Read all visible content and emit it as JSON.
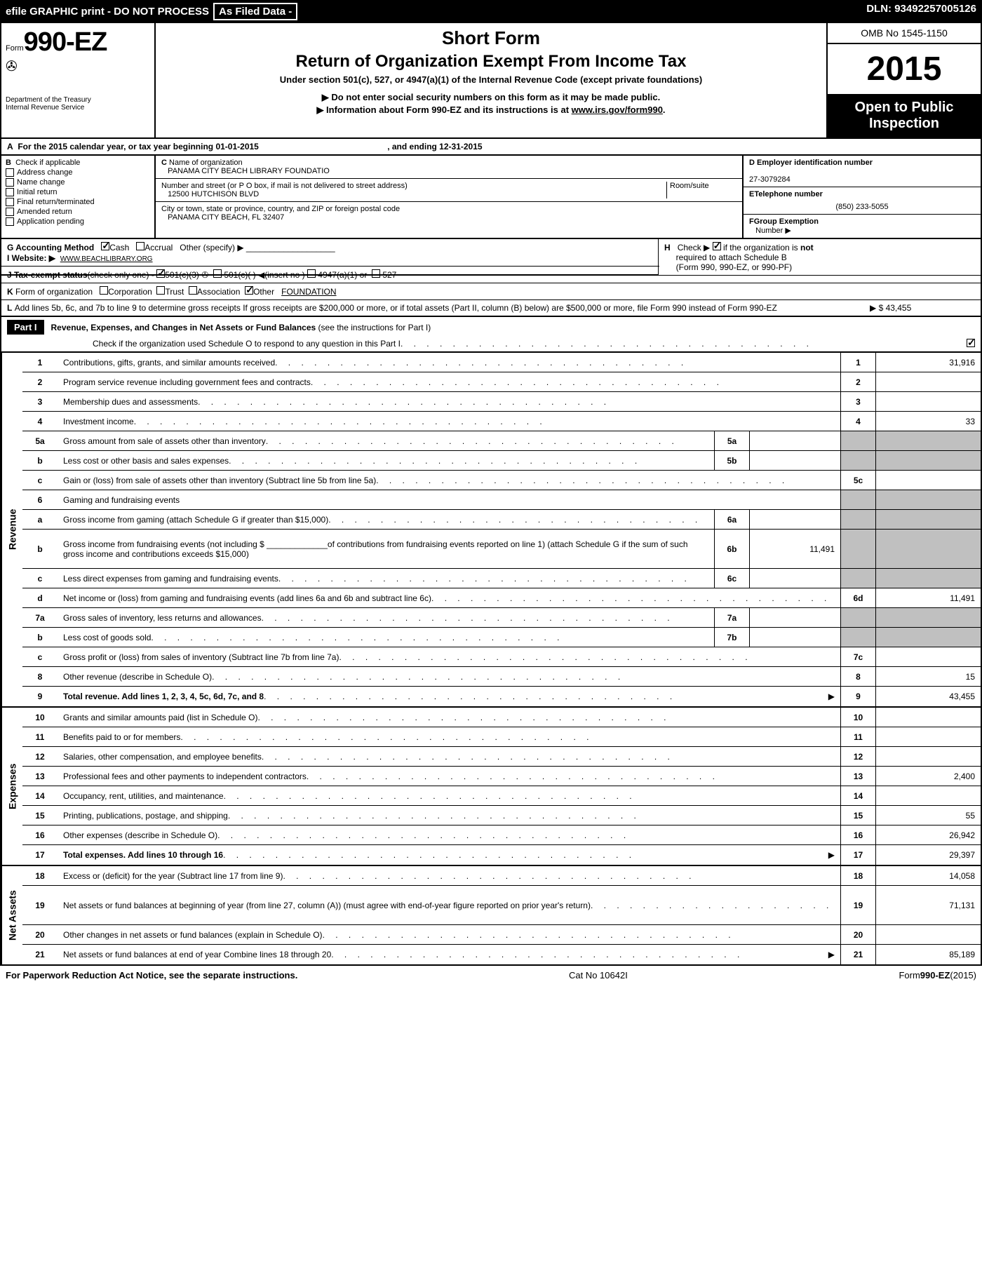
{
  "header": {
    "efile": "efile GRAPHIC print - DO NOT PROCESS",
    "asfiled": "As Filed Data -",
    "dln": "DLN: 93492257005126"
  },
  "title": {
    "formPrefix": "Form",
    "formNum": "990-EZ",
    "dept": "Department of the Treasury",
    "irs": "Internal Revenue Service",
    "shortForm": "Short Form",
    "mainTitle": "Return of Organization Exempt From Income Tax",
    "subtitle": "Under section 501(c), 527, or 4947(a)(1) of the Internal Revenue Code (except private foundations)",
    "info1": "▶ Do not enter social security numbers on this form as it may be made public.",
    "info2": "▶ Information about Form 990-EZ and its instructions is at ",
    "info2link": "www.irs.gov/form990",
    "omb": "OMB No 1545-1150",
    "year": "2015",
    "openPublic1": "Open to Public",
    "openPublic2": "Inspection"
  },
  "sectionA": {
    "label": "A",
    "text1": "For the 2015 calendar year, or tax year beginning 01-01-2015",
    "text2": ", and ending 12-31-2015"
  },
  "sectionB": {
    "label": "B",
    "intro": "Check if applicable",
    "opts": [
      "Address change",
      "Name change",
      "Initial return",
      "Final return/terminated",
      "Amended return",
      "Application pending"
    ]
  },
  "sectionC": {
    "label": "C",
    "nameLabel": "Name of organization",
    "name": "PANAMA CITY BEACH LIBRARY FOUNDATIO",
    "addrLabel": "Number and street (or P O box, if mail is not delivered to street address)",
    "roomLabel": "Room/suite",
    "addr": "12500 HUTCHISON BLVD",
    "cityLabel": "City or town, state or province, country, and ZIP or foreign postal code",
    "city": "PANAMA CITY BEACH, FL  32407"
  },
  "sectionD": {
    "einLabel": "D Employer identification number",
    "ein": "27-3079284",
    "phoneLabel": "ETelephone number",
    "phone": "(850) 233-5055",
    "groupLabel": "FGroup Exemption",
    "groupLabel2": "Number    ▶"
  },
  "sectionG": {
    "label": "G Accounting Method",
    "cash": "Cash",
    "accrual": "Accrual",
    "other": "Other (specify) ▶"
  },
  "sectionH": {
    "label": "H",
    "text1": "Check ▶",
    "text2": "if the organization is ",
    "not": "not",
    "text3": "required to attach Schedule B",
    "text4": "(Form 990, 990-EZ, or 990-PF)"
  },
  "sectionI": {
    "label": "I Website: ▶",
    "url": "WWW.BEACHLIBRARY.ORG"
  },
  "sectionJ": {
    "label": "J Tax-exempt status",
    "text": "(check only one) -",
    "opt1": "501(c)(3)",
    "opt2": "501(c)( )",
    "opt2b": "◀(insert no )",
    "opt3": "4947(a)(1) or",
    "opt4": "527"
  },
  "sectionK": {
    "label": "K",
    "text": "Form of organization",
    "opts": [
      "Corporation",
      "Trust",
      "Association",
      "Other"
    ],
    "value": "FOUNDATION"
  },
  "sectionL": {
    "label": "L",
    "text": "Add lines 5b, 6c, and 7b to line 9 to determine gross receipts  If gross receipts are $200,000 or more, or if total assets (Part II, column (B) below) are $500,000 or more, file Form 990 instead of Form 990-EZ",
    "value": "▶ $ 43,455"
  },
  "part1": {
    "label": "Part I",
    "title": "Revenue, Expenses, and Changes in Net Assets or Fund Balances",
    "titleSub": "(see the instructions for Part I)",
    "checkLine": "Check if the organization used Schedule O to respond to any question in this Part I"
  },
  "revenue": {
    "label": "Revenue",
    "lines": [
      {
        "n": "1",
        "d": "Contributions, gifts, grants, and similar amounts received",
        "rn": "1",
        "rv": "31,916"
      },
      {
        "n": "2",
        "d": "Program service revenue including government fees and contracts",
        "rn": "2",
        "rv": ""
      },
      {
        "n": "3",
        "d": "Membership dues and assessments",
        "rn": "3",
        "rv": ""
      },
      {
        "n": "4",
        "d": "Investment income",
        "rn": "4",
        "rv": "33"
      },
      {
        "n": "5a",
        "d": "Gross amount from sale of assets other than inventory",
        "sn": "5a",
        "sv": "",
        "shaded": true
      },
      {
        "n": "b",
        "d": "Less  cost or other basis and sales expenses",
        "sn": "5b",
        "sv": "",
        "shaded": true
      },
      {
        "n": "c",
        "d": "Gain or (loss) from sale of assets other than inventory (Subtract line 5b from line 5a)",
        "rn": "5c",
        "rv": ""
      },
      {
        "n": "6",
        "d": "Gaming and fundraising events",
        "shaded": true,
        "noval": true
      },
      {
        "n": "a",
        "d": "Gross income from gaming (attach Schedule G if greater than $15,000)",
        "sn": "6a",
        "sv": "",
        "shaded": true
      },
      {
        "n": "b",
        "d": "Gross income from fundraising events (not including $ _____________of contributions from fundraising events reported on line 1) (attach Schedule G if the sum of such gross income and contributions exceeds $15,000)",
        "sn": "6b",
        "sv": "11,491",
        "shaded": true,
        "tall": true
      },
      {
        "n": "c",
        "d": "Less  direct expenses from gaming and fundraising events",
        "sn": "6c",
        "sv": "",
        "shaded": true
      },
      {
        "n": "d",
        "d": "Net income or (loss) from gaming and fundraising events (add lines 6a and 6b and subtract line 6c)",
        "rn": "6d",
        "rv": "11,491"
      },
      {
        "n": "7a",
        "d": "Gross sales of inventory, less returns and allowances",
        "sn": "7a",
        "sv": "",
        "shaded": true
      },
      {
        "n": "b",
        "d": "Less  cost of goods sold",
        "sn": "7b",
        "sv": "",
        "shaded": true
      },
      {
        "n": "c",
        "d": "Gross profit or (loss) from sales of inventory (Subtract line 7b from line 7a)",
        "rn": "7c",
        "rv": ""
      },
      {
        "n": "8",
        "d": "Other revenue (describe in Schedule O)",
        "rn": "8",
        "rv": "15"
      },
      {
        "n": "9",
        "d": "Total revenue. Add lines 1, 2, 3, 4, 5c, 6d, 7c, and 8",
        "rn": "9",
        "rv": "43,455",
        "bold": true,
        "arrow": true
      }
    ]
  },
  "expenses": {
    "label": "Expenses",
    "lines": [
      {
        "n": "10",
        "d": "Grants and similar amounts paid (list in Schedule O)",
        "rn": "10",
        "rv": ""
      },
      {
        "n": "11",
        "d": "Benefits paid to or for members",
        "rn": "11",
        "rv": ""
      },
      {
        "n": "12",
        "d": "Salaries, other compensation, and employee benefits",
        "rn": "12",
        "rv": ""
      },
      {
        "n": "13",
        "d": "Professional fees and other payments to independent contractors",
        "rn": "13",
        "rv": "2,400"
      },
      {
        "n": "14",
        "d": "Occupancy, rent, utilities, and maintenance",
        "rn": "14",
        "rv": ""
      },
      {
        "n": "15",
        "d": "Printing, publications, postage, and shipping",
        "rn": "15",
        "rv": "55"
      },
      {
        "n": "16",
        "d": "Other expenses (describe in Schedule O)",
        "rn": "16",
        "rv": "26,942"
      },
      {
        "n": "17",
        "d": "Total expenses. Add lines 10 through 16",
        "rn": "17",
        "rv": "29,397",
        "bold": true,
        "arrow": true
      }
    ]
  },
  "netassets": {
    "label": "Net Assets",
    "lines": [
      {
        "n": "18",
        "d": "Excess or (deficit) for the year (Subtract line 17 from line 9)",
        "rn": "18",
        "rv": "14,058"
      },
      {
        "n": "19",
        "d": "Net assets or fund balances at beginning of year (from line 27, column (A)) (must agree with end-of-year figure reported on prior year's return)",
        "rn": "19",
        "rv": "71,131",
        "tall": true
      },
      {
        "n": "20",
        "d": "Other changes in net assets or fund balances (explain in Schedule O)",
        "rn": "20",
        "rv": ""
      },
      {
        "n": "21",
        "d": "Net assets or fund balances at end of year  Combine lines 18 through 20",
        "rn": "21",
        "rv": "85,189",
        "arrow": true
      }
    ]
  },
  "footer": {
    "left": "For Paperwork Reduction Act Notice, see the separate instructions.",
    "center": "Cat No 10642I",
    "right": "Form990-EZ(2015)"
  }
}
